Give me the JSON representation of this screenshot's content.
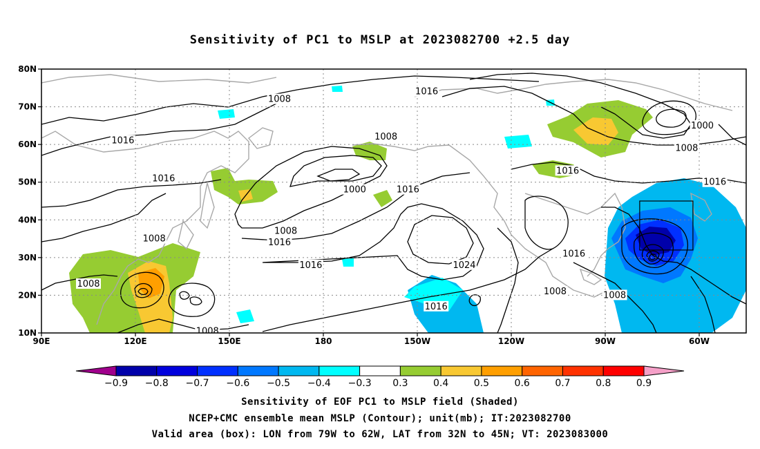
{
  "title": "Sensitivity of PC1 to MSLP at 2023082700 +2.5 day",
  "map": {
    "lon_labels": [
      {
        "lon": 90,
        "text": "90E"
      },
      {
        "lon": 120,
        "text": "120E"
      },
      {
        "lon": 150,
        "text": "150E"
      },
      {
        "lon": 180,
        "text": "180"
      },
      {
        "lon": 210,
        "text": "150W"
      },
      {
        "lon": 240,
        "text": "120W"
      },
      {
        "lon": 270,
        "text": "90W"
      },
      {
        "lon": 300,
        "text": "60W"
      }
    ],
    "lat_labels": [
      {
        "lat": 80,
        "text": "80N"
      },
      {
        "lat": 70,
        "text": "70N"
      },
      {
        "lat": 60,
        "text": "60N"
      },
      {
        "lat": 50,
        "text": "50N"
      },
      {
        "lat": 40,
        "text": "40N"
      },
      {
        "lat": 30,
        "text": "30N"
      },
      {
        "lat": 20,
        "text": "20N"
      },
      {
        "lat": 10,
        "text": "10N"
      }
    ],
    "lon_range": [
      90,
      315
    ],
    "lat_range": [
      10,
      80
    ],
    "valid_box": {
      "lon": [
        281,
        298
      ],
      "lat": [
        32,
        45
      ]
    },
    "contour_labels": [
      {
        "text": "1008",
        "lon": 166,
        "lat": 72
      },
      {
        "text": "1016",
        "lon": 116,
        "lat": 61
      },
      {
        "text": "1016",
        "lon": 129,
        "lat": 51
      },
      {
        "text": "1008",
        "lon": 126,
        "lat": 35
      },
      {
        "text": "1008",
        "lon": 105,
        "lat": 23
      },
      {
        "text": "1008",
        "lon": 143,
        "lat": 10.5
      },
      {
        "text": "1016",
        "lon": 213,
        "lat": 74
      },
      {
        "text": "1008",
        "lon": 200,
        "lat": 62
      },
      {
        "text": "1000",
        "lon": 190,
        "lat": 48
      },
      {
        "text": "1016",
        "lon": 207,
        "lat": 48
      },
      {
        "text": "1008",
        "lon": 168,
        "lat": 37
      },
      {
        "text": "1016",
        "lon": 166,
        "lat": 34
      },
      {
        "text": "1016",
        "lon": 176,
        "lat": 28
      },
      {
        "text": "1024",
        "lon": 225,
        "lat": 28
      },
      {
        "text": "1016",
        "lon": 216,
        "lat": 17
      },
      {
        "text": "1016",
        "lon": 258,
        "lat": 53
      },
      {
        "text": "1000",
        "lon": 301,
        "lat": 65
      },
      {
        "text": "1008",
        "lon": 296,
        "lat": 59
      },
      {
        "text": "1016",
        "lon": 305,
        "lat": 50
      },
      {
        "text": "1016",
        "lon": 260,
        "lat": 31
      },
      {
        "text": "1008",
        "lon": 254,
        "lat": 21
      },
      {
        "text": "1008",
        "lon": 273,
        "lat": 20
      }
    ]
  },
  "colorbar": {
    "levels": [
      "-0.9",
      "-0.8",
      "-0.7",
      "-0.6",
      "-0.5",
      "-0.4",
      "-0.3",
      "0.3",
      "0.4",
      "0.5",
      "0.6",
      "0.7",
      "0.8",
      "0.9"
    ],
    "colors": [
      "#a0008c",
      "#0000aa",
      "#0000dd",
      "#0030ff",
      "#0078ff",
      "#00b8f0",
      "#00ffff",
      "#ffffff",
      "#96cc32",
      "#f8c832",
      "#ff9f00",
      "#ff6400",
      "#ff3200",
      "#ff0000",
      "#f5a0c8"
    ]
  },
  "captions": [
    "Sensitivity of EOF PC1 to MSLP field (Shaded)",
    "NCEP+CMC ensemble mean MSLP (Contour); unit(mb); IT:2023082700",
    "Valid area (box): LON from 79W to 62W, LAT from 32N to 45N; VT: 2023083000"
  ]
}
